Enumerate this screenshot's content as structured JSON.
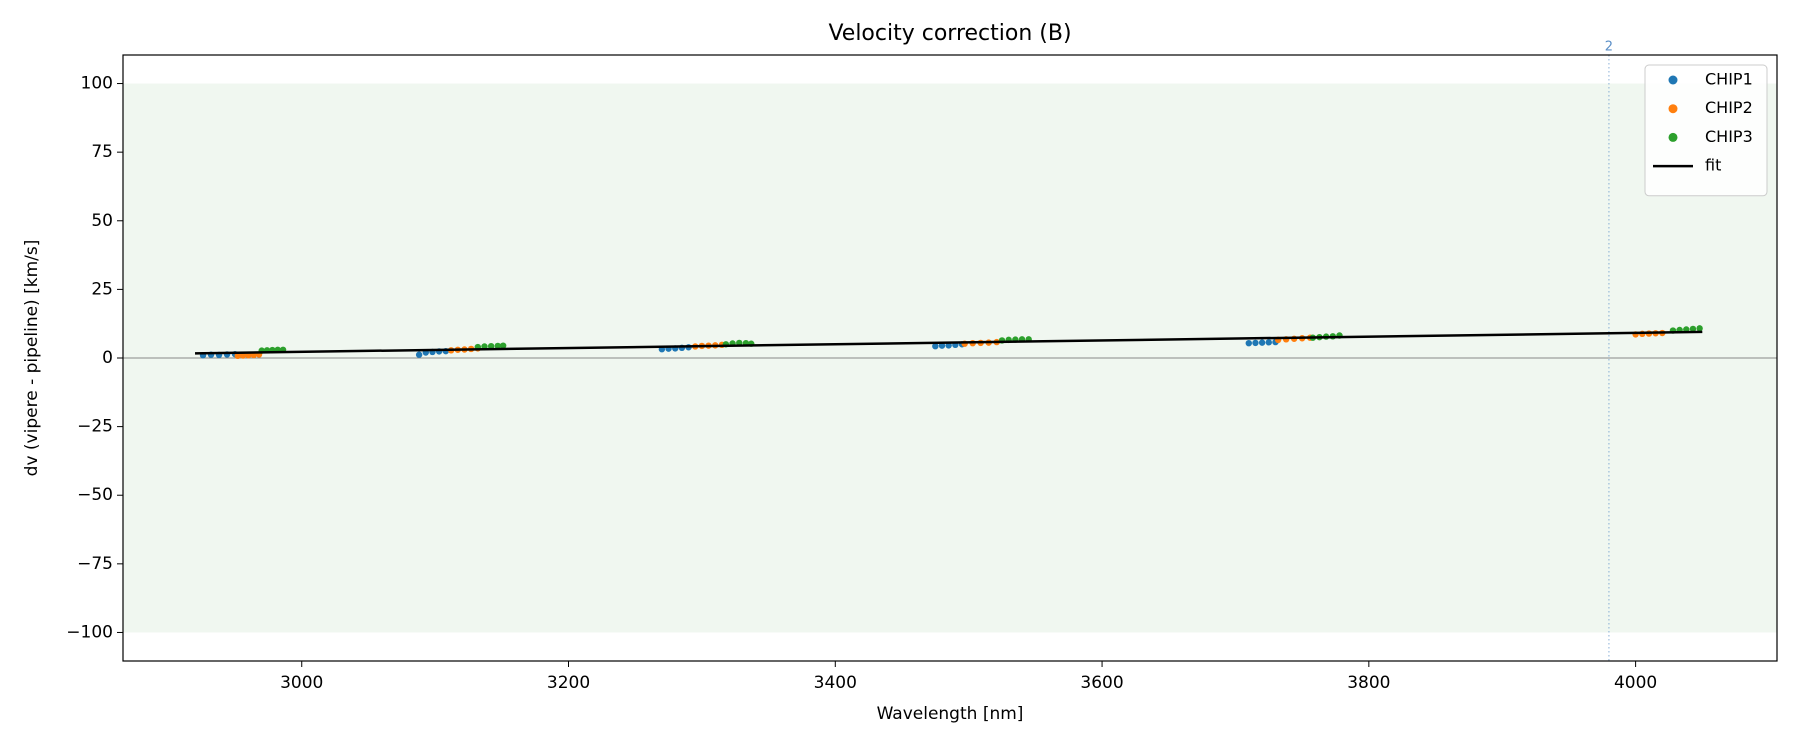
{
  "chart_data": {
    "type": "scatter",
    "title": "Velocity correction (B)",
    "xlabel": "Wavelength [nm]",
    "ylabel": "dv (vipere - pipeline) [km/s]",
    "xlim": [
      2866,
      4106
    ],
    "ylim": [
      -110.4,
      110.4
    ],
    "xticks": [
      3000,
      3200,
      3400,
      3600,
      3800,
      4000
    ],
    "yticks": [
      {
        "value": -100,
        "label": "−100"
      },
      {
        "value": -75,
        "label": "−75"
      },
      {
        "value": -50,
        "label": "−50"
      },
      {
        "value": -25,
        "label": "−25"
      },
      0,
      25,
      50,
      75,
      100
    ],
    "band": [
      -100,
      100
    ],
    "band_color": "#f0f7f0",
    "hline": 0,
    "vline": {
      "x": 3980,
      "label": "2",
      "color": "#5b8fc7"
    },
    "legend": "upper right",
    "series": [
      {
        "name": "CHIP1",
        "type": "scatter",
        "color": "#1f77b4",
        "x": [
          2926,
          2932,
          2938,
          2944,
          2950,
          3088,
          3093,
          3098,
          3103,
          3108,
          3270,
          3275,
          3280,
          3285,
          3290,
          3475,
          3480,
          3485,
          3490,
          3495,
          3710,
          3715,
          3720,
          3725,
          3730
        ],
        "values": [
          1,
          1.2,
          1.1,
          1.3,
          1.4,
          1.2,
          2,
          2.2,
          2.4,
          2.5,
          3.2,
          3.4,
          3.5,
          3.7,
          3.9,
          4.3,
          4.5,
          4.6,
          4.8,
          5,
          5.4,
          5.5,
          5.6,
          5.7,
          5.8
        ]
      },
      {
        "name": "CHIP2",
        "type": "scatter",
        "color": "#ff7f0e",
        "x": [
          2952,
          2956,
          2960,
          2964,
          2968,
          3112,
          3117,
          3122,
          3127,
          3132,
          3295,
          3300,
          3305,
          3310,
          3315,
          3497,
          3503,
          3509,
          3515,
          3521,
          3732,
          3738,
          3744,
          3750,
          3756,
          4000,
          4005,
          4010,
          4015,
          4020
        ],
        "values": [
          0.8,
          0.9,
          1,
          1.1,
          1.3,
          2.8,
          3,
          3.1,
          3.3,
          3.5,
          4.2,
          4.4,
          4.5,
          4.6,
          4.8,
          5.2,
          5.4,
          5.5,
          5.6,
          5.8,
          6.6,
          6.8,
          7,
          7.2,
          7.4,
          8.6,
          8.8,
          8.9,
          9,
          9.1
        ]
      },
      {
        "name": "CHIP3",
        "type": "scatter",
        "color": "#2ca02c",
        "x": [
          2970,
          2974,
          2978,
          2982,
          2986,
          3132,
          3137,
          3142,
          3147,
          3151,
          3318,
          3323,
          3328,
          3333,
          3337,
          3525,
          3530,
          3535,
          3540,
          3545,
          3758,
          3763,
          3768,
          3773,
          3778,
          4028,
          4033,
          4038,
          4043,
          4048
        ],
        "values": [
          2.7,
          2.8,
          2.9,
          3,
          3,
          4,
          4.2,
          4.3,
          4.4,
          4.5,
          5,
          5.3,
          5.5,
          5.4,
          5.2,
          6.4,
          6.6,
          6.7,
          6.8,
          6.8,
          7.4,
          7.6,
          7.8,
          7.9,
          8.2,
          10,
          10.2,
          10.4,
          10.6,
          10.8
        ]
      },
      {
        "name": "fit",
        "type": "line",
        "color": "#000000",
        "x": [
          2920,
          4050
        ],
        "values": [
          1.7,
          9.5
        ]
      }
    ]
  }
}
